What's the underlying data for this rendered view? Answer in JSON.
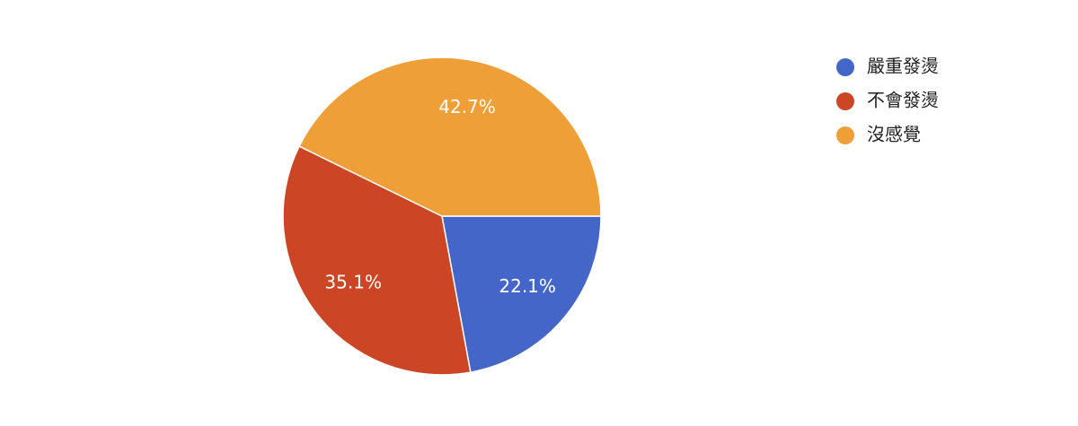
{
  "chart_data": {
    "type": "pie",
    "categories": [
      "嚴重發燙",
      "不會發燙",
      "沒感覺"
    ],
    "values": [
      22.1,
      35.1,
      42.7
    ],
    "value_labels": [
      "22.1%",
      "35.1%",
      "42.7%"
    ],
    "colors": [
      "#4366c8",
      "#cc4625",
      "#ef9f38"
    ],
    "legend": "right"
  }
}
